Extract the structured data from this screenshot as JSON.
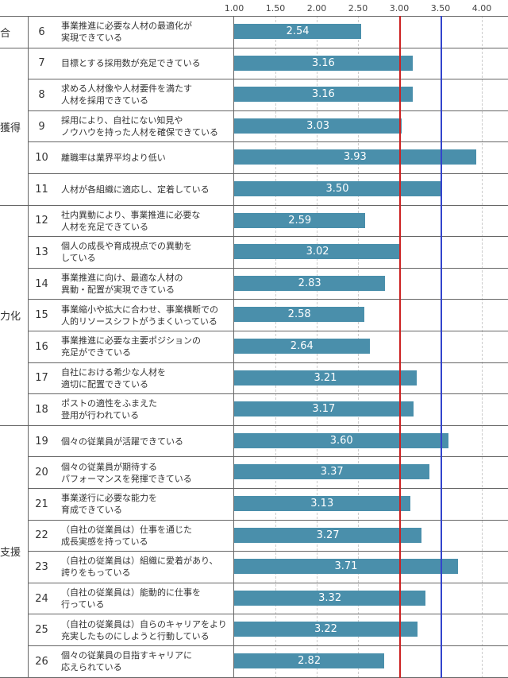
{
  "chart_data": {
    "type": "bar",
    "orientation": "horizontal",
    "xlim": [
      1.0,
      4.0
    ],
    "ticks": [
      "1.00",
      "1.50",
      "2.00",
      "2.50",
      "3.00",
      "3.50",
      "4.00"
    ],
    "reference_lines": [
      {
        "value": 3.0,
        "color": "#cc2222"
      },
      {
        "value": 3.5,
        "color": "#3344cc"
      }
    ],
    "bar_color": "#4a8fab",
    "groups": [
      {
        "label": "合",
        "rows": [
          6
        ]
      },
      {
        "label": "獲得",
        "rows": [
          7,
          8,
          9,
          10,
          11
        ]
      },
      {
        "label": "力化",
        "rows": [
          12,
          13,
          14,
          15,
          16,
          17,
          18
        ]
      },
      {
        "label": "支援",
        "rows": [
          19,
          20,
          21,
          22,
          23,
          24,
          25,
          26
        ]
      }
    ],
    "rows": [
      {
        "no": "6",
        "text": "事業推進に必要な人材の最適化が\n実現できている",
        "value": 2.54,
        "label": "2.54"
      },
      {
        "no": "7",
        "text": "目標とする採用数が充足できている",
        "value": 3.16,
        "label": "3.16"
      },
      {
        "no": "8",
        "text": "求める人材像や人材要件を満たす\n人材を採用できている",
        "value": 3.16,
        "label": "3.16"
      },
      {
        "no": "9",
        "text": "採用により、自社にない知見や\nノウハウを持った人材を確保できている",
        "value": 3.03,
        "label": "3.03"
      },
      {
        "no": "10",
        "text": "離職率は業界平均より低い",
        "value": 3.93,
        "label": "3.93"
      },
      {
        "no": "11",
        "text": "人材が各組織に適応し、定着している",
        "value": 3.5,
        "label": "3.50"
      },
      {
        "no": "12",
        "text": "社内異動により、事業推進に必要な\n人材を充足できている",
        "value": 2.59,
        "label": "2.59"
      },
      {
        "no": "13",
        "text": "個人の成長や育成視点での異動を\nしている",
        "value": 3.02,
        "label": "3.02"
      },
      {
        "no": "14",
        "text": "事業推進に向け、最適な人材の\n異動・配置が実現できている",
        "value": 2.83,
        "label": "2.83"
      },
      {
        "no": "15",
        "text": "事業縮小や拡大に合わせ、事業横断での\n人的リソースシフトがうまくいっている",
        "value": 2.58,
        "label": "2.58"
      },
      {
        "no": "16",
        "text": "事業推進に必要な主要ポジションの\n充足ができている",
        "value": 2.64,
        "label": "2.64"
      },
      {
        "no": "17",
        "text": "自社における希少な人材を\n適切に配置できている",
        "value": 3.21,
        "label": "3.21"
      },
      {
        "no": "18",
        "text": "ポストの適性をふまえた\n登用が行われている",
        "value": 3.17,
        "label": "3.17"
      },
      {
        "no": "19",
        "text": "個々の従業員が活躍できている",
        "value": 3.6,
        "label": "3.60"
      },
      {
        "no": "20",
        "text": "個々の従業員が期待する\nパフォーマンスを発揮できている",
        "value": 3.37,
        "label": "3.37"
      },
      {
        "no": "21",
        "text": "事業遂行に必要な能力を\n育成できている",
        "value": 3.13,
        "label": "3.13"
      },
      {
        "no": "22",
        "text": "（自社の従業員は）仕事を通じた\n成長実感を持っている",
        "value": 3.27,
        "label": "3.27"
      },
      {
        "no": "23",
        "text": "（自社の従業員は）組織に愛着があり、\n誇りをもっている",
        "value": 3.71,
        "label": "3.71"
      },
      {
        "no": "24",
        "text": "（自社の従業員は）能動的に仕事を\n行っている",
        "value": 3.32,
        "label": "3.32"
      },
      {
        "no": "25",
        "text": "（自社の従業員は）自らのキャリアをより\n充実したものにしようと行動している",
        "value": 3.22,
        "label": "3.22"
      },
      {
        "no": "26",
        "text": "個々の従業員の目指すキャリアに\n応えられている",
        "value": 2.82,
        "label": "2.82"
      }
    ]
  }
}
